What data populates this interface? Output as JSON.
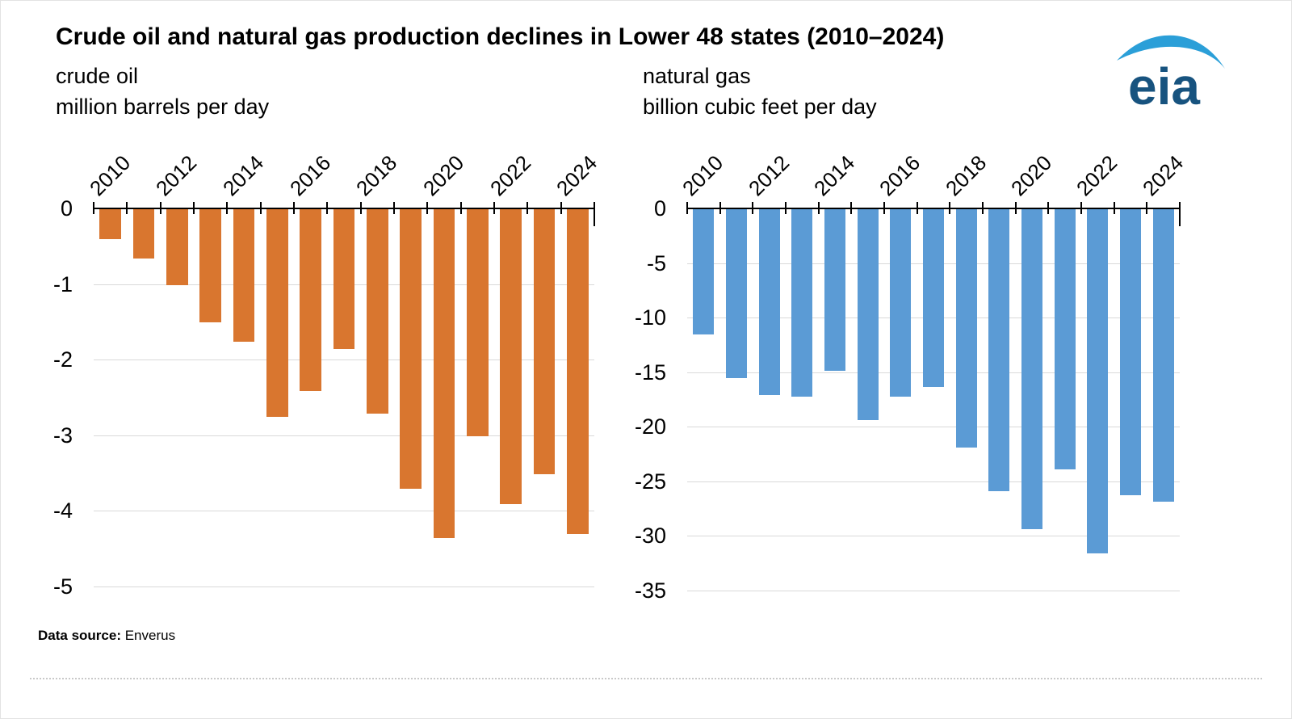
{
  "title": "Crude oil and natural gas production declines in Lower 48 states (2010–2024)",
  "logo": {
    "text": "eia",
    "text_color": "#17537f",
    "swoosh_color": "#2b9fd8"
  },
  "footer": {
    "label": "Data source:",
    "value": "Enverus"
  },
  "chart_data": [
    {
      "type": "bar",
      "title": "crude oil",
      "subtitle": "million barrels per day",
      "categories": [
        2010,
        2011,
        2012,
        2013,
        2014,
        2015,
        2016,
        2017,
        2018,
        2019,
        2020,
        2021,
        2022,
        2023,
        2024
      ],
      "values": [
        -0.4,
        -0.65,
        -1.0,
        -1.5,
        -1.75,
        -2.75,
        -2.4,
        -1.85,
        -2.7,
        -3.7,
        -4.35,
        -3.0,
        -3.9,
        -3.5,
        -4.3
      ],
      "ylim": [
        -5,
        0
      ],
      "yticks": [
        0,
        -1,
        -2,
        -3,
        -4,
        -5
      ],
      "xtick_years": [
        2010,
        2012,
        2014,
        2016,
        2018,
        2020,
        2022,
        2024
      ],
      "bar_color": "#d9762f",
      "grid": true,
      "legend": "none"
    },
    {
      "type": "bar",
      "title": "natural gas",
      "subtitle": "billion cubic feet per day",
      "categories": [
        2010,
        2011,
        2012,
        2013,
        2014,
        2015,
        2016,
        2017,
        2018,
        2019,
        2020,
        2021,
        2022,
        2023,
        2024
      ],
      "values": [
        -11.5,
        -15.5,
        -17.0,
        -17.2,
        -14.8,
        -19.3,
        -17.2,
        -16.3,
        -21.8,
        -25.8,
        -29.3,
        -23.8,
        -31.5,
        -26.2,
        -26.8
      ],
      "ylim": [
        -35,
        0
      ],
      "yticks": [
        0,
        -5,
        -10,
        -15,
        -20,
        -25,
        -30,
        -35
      ],
      "xtick_years": [
        2010,
        2012,
        2014,
        2016,
        2018,
        2020,
        2022,
        2024
      ],
      "bar_color": "#5b9bd5",
      "grid": true,
      "legend": "none"
    }
  ]
}
